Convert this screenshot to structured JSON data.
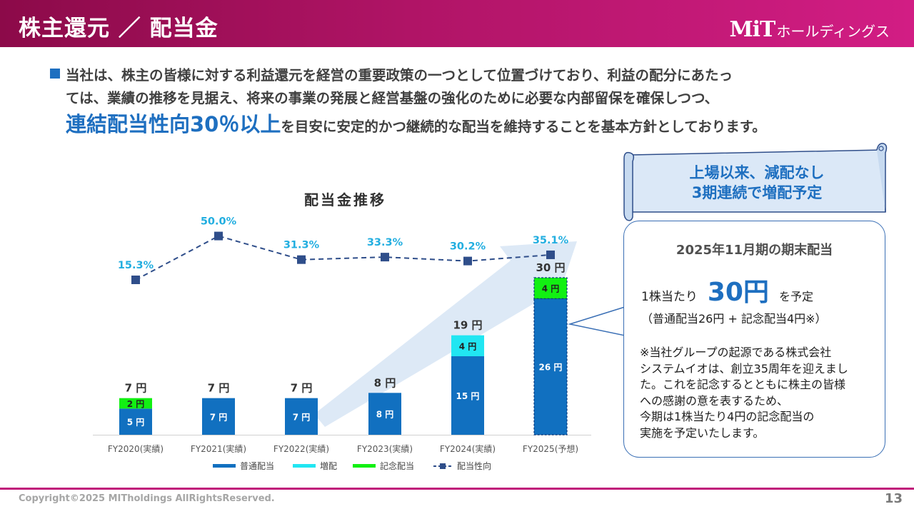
{
  "header": {
    "title": "株主還元 ／ 配当金",
    "logo_mark": "MiT",
    "logo_sub": "ホールディングス"
  },
  "intro": {
    "line1": "当社は、株主の皆様に対する利益還元を経営の重要政策の一つとして位置づけており、利益の配分にあたっ",
    "line2": "ては、業績の推移を見据え、将来の事業の発展と経営基盤の強化のために必要な内部留保を確保しつつ、",
    "emph": "連結配当性向30％以上",
    "rest": "を目安に安定的かつ継続的な配当を維持することを基本方針としております。"
  },
  "banner": {
    "line1": "上場以来、減配なし",
    "line2": "3期連続で増配予定"
  },
  "callout": {
    "title": "2025年11月期の期末配当",
    "price_prefix": "1株当たり",
    "price_value": "30円",
    "price_suffix": "を予定",
    "breakdown": "（普通配当26円 + 記念配当4円※）",
    "note": [
      "※当社グループの起源である株式会社",
      "システムイオは、創立35周年を迎えまし",
      "た。これを記念するとともに株主の皆様",
      "への感謝の意を表するため、",
      "今期は1株当たり4円の記念配当の",
      "実施を予定いたします。"
    ]
  },
  "colors": {
    "regular": "#1170c0",
    "increase": "#21e6f2",
    "commemorative": "#12f012",
    "ratio": "#2f4e8a",
    "ratio_label": "#22aee0"
  },
  "chart_data": {
    "type": "bar",
    "title": "配当金推移",
    "categories": [
      "FY2020(実績)",
      "FY2021(実績)",
      "FY2022(実績)",
      "FY2023(実績)",
      "FY2024(実績)",
      "FY2025(予想)"
    ],
    "unit": "円",
    "series": [
      {
        "name": "普通配当",
        "values": [
          5,
          7,
          7,
          8,
          15,
          26
        ]
      },
      {
        "name": "増配",
        "values": [
          0,
          0,
          0,
          0,
          4,
          0
        ]
      },
      {
        "name": "記念配当",
        "values": [
          2,
          0,
          0,
          0,
          0,
          4
        ]
      }
    ],
    "totals": [
      "7 円",
      "7 円",
      "7 円",
      "8 円",
      "19 円",
      "30 円"
    ],
    "bar_labels": {
      "regular": [
        "5 円",
        "7 円",
        "7 円",
        "8 円",
        "15 円",
        "26 円"
      ],
      "increase": [
        "",
        "",
        "",
        "",
        "4 円",
        ""
      ],
      "commemorative": [
        "2 円",
        "",
        "",
        "",
        "",
        "4 円"
      ]
    },
    "ratio": {
      "name": "配当性向",
      "values": [
        15.3,
        50.0,
        31.3,
        33.3,
        30.2,
        35.1
      ],
      "labels": [
        "15.3%",
        "50.0%",
        "31.3%",
        "33.3%",
        "30.2%",
        "35.1%"
      ]
    },
    "legend": [
      "普通配当",
      "増配",
      "記念配当",
      "配当性向"
    ],
    "legend_position": "bottom"
  },
  "footer": {
    "copyright": "Copyright©2025 MITholdings AllRightsReserved.",
    "page": "13"
  }
}
